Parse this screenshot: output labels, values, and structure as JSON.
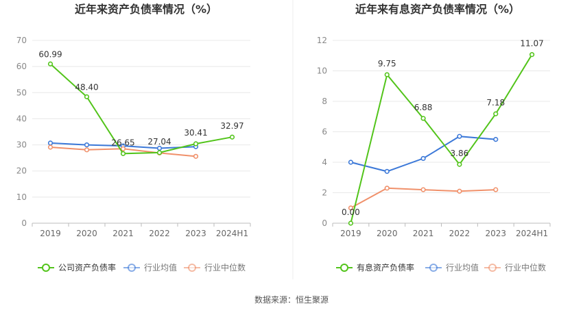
{
  "source_text": "数据来源：恒生聚源",
  "colors": {
    "company": "#52c41a",
    "industry_avg": "#3b78d8",
    "industry_median": "#f0906a",
    "grid": "#e8e8e8",
    "axis_text": "#666666",
    "label_text": "#333333",
    "title_text": "#333333"
  },
  "chart_data": [
    {
      "type": "line",
      "title": "近年来资产负债率情况（%）",
      "categories": [
        "2019",
        "2020",
        "2021",
        "2022",
        "2023",
        "2024H1"
      ],
      "ylim": [
        0,
        70
      ],
      "yticks": [
        0,
        10,
        20,
        30,
        40,
        50,
        60,
        70
      ],
      "grid": true,
      "legend_position": "bottom",
      "series": [
        {
          "name": "公司资产负债率",
          "values": [
            60.99,
            48.4,
            26.65,
            27.04,
            30.41,
            32.97
          ],
          "labels": [
            "60.99",
            "48.40",
            "26.65",
            "27.04",
            "30.41",
            "32.97"
          ],
          "color": "#52c41a"
        },
        {
          "name": "行业均值",
          "values": [
            30.7,
            30.0,
            29.6,
            28.7,
            29.3,
            null
          ],
          "color": "#3b78d8"
        },
        {
          "name": "行业中位数",
          "values": [
            29.1,
            28.1,
            28.5,
            26.9,
            25.6,
            null
          ],
          "color": "#f0906a"
        }
      ]
    },
    {
      "type": "line",
      "title": "近年来有息资产负债率情况（%）",
      "categories": [
        "2019",
        "2020",
        "2021",
        "2022",
        "2023",
        "2024H1"
      ],
      "ylim": [
        0,
        12
      ],
      "yticks": [
        0,
        2,
        4,
        6,
        8,
        10,
        12
      ],
      "grid": true,
      "legend_position": "bottom",
      "series": [
        {
          "name": "有息资产负债率",
          "values": [
            0.0,
            9.75,
            6.88,
            3.86,
            7.18,
            11.07
          ],
          "labels": [
            "0.00",
            "9.75",
            "6.88",
            "3.86",
            "7.18",
            "11.07"
          ],
          "color": "#52c41a"
        },
        {
          "name": "行业均值",
          "values": [
            4.0,
            3.4,
            4.25,
            5.7,
            5.5,
            null
          ],
          "color": "#3b78d8"
        },
        {
          "name": "行业中位数",
          "values": [
            1.0,
            2.3,
            2.2,
            2.1,
            2.2,
            null
          ],
          "color": "#f0906a"
        }
      ]
    }
  ]
}
